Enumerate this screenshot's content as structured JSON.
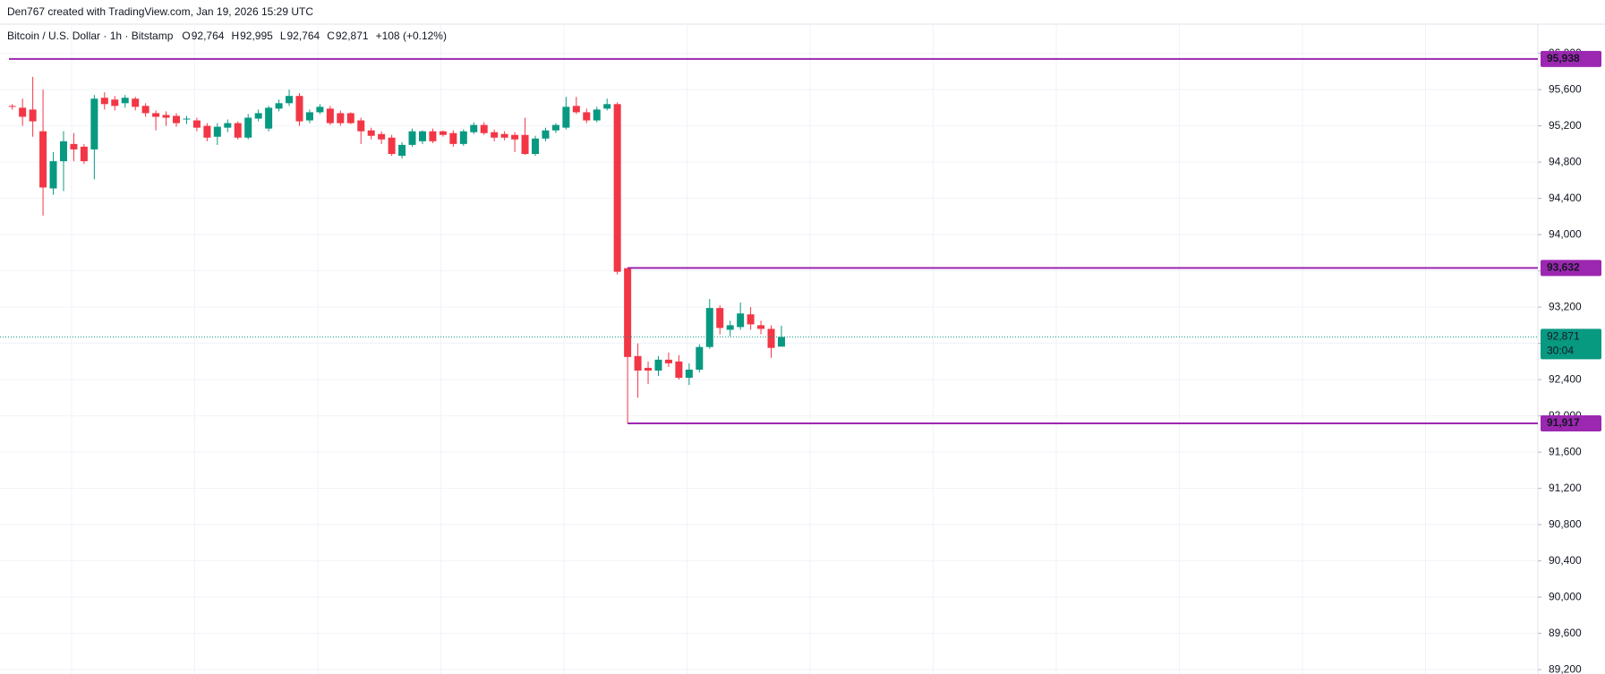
{
  "chart_data": {
    "type": "candlestick",
    "header": "Den767 created with TradingView.com, Jan 19, 2026 15:29 UTC",
    "symbol": "Bitcoin / U.S. Dollar · 1h · Bitstamp",
    "ohlc_labels": [
      {
        "key": "O",
        "text": "92,764"
      },
      {
        "key": "H",
        "text": "92,995"
      },
      {
        "key": "L",
        "text": "92,764"
      },
      {
        "key": "C",
        "text": "92,871"
      }
    ],
    "change": "+108 (+0.12%)",
    "up_color": "#089981",
    "down_color": "#f23645",
    "line_color": "#9c27b0",
    "open": [
      95420,
      95400,
      95380,
      95140,
      94510,
      94810,
      95000,
      94970,
      94940,
      95510,
      95490,
      95450,
      95500,
      95420,
      95340,
      95320,
      95310,
      95270,
      95260,
      95200,
      95080,
      95180,
      95230,
      95070,
      95280,
      95170,
      95390,
      95450,
      95530,
      95260,
      95350,
      95390,
      95340,
      95340,
      95260,
      95150,
      95110,
      95070,
      94870,
      94990,
      95030,
      95140,
      95140,
      95120,
      95000,
      95130,
      95210,
      95130,
      95110,
      95100,
      95100,
      94890,
      95060,
      95150,
      95180,
      95420,
      95350,
      95260,
      95390,
      95440,
      93630,
      92660,
      92530,
      92500,
      92620,
      92600,
      92420,
      92510,
      92760,
      93190,
      92950,
      92980,
      93120,
      93000,
      92960,
      92764
    ],
    "high": [
      95440,
      95500,
      95740,
      95600,
      94910,
      95140,
      95120,
      95000,
      95540,
      95570,
      95530,
      95540,
      95520,
      95450,
      95370,
      95360,
      95340,
      95310,
      95290,
      95230,
      95230,
      95270,
      95250,
      95330,
      95380,
      95420,
      95490,
      95600,
      95560,
      95380,
      95440,
      95420,
      95370,
      95350,
      95290,
      95180,
      95140,
      95100,
      95020,
      95170,
      95150,
      95170,
      95150,
      95150,
      95160,
      95240,
      95240,
      95160,
      95140,
      95130,
      95290,
      95090,
      95180,
      95230,
      95520,
      95520,
      95390,
      95410,
      95500,
      95460,
      93632,
      92800,
      92600,
      92660,
      92700,
      92670,
      92580,
      92790,
      93290,
      93220,
      93050,
      93250,
      93200,
      93050,
      93000,
      92995
    ],
    "low": [
      95380,
      95200,
      95080,
      94210,
      94440,
      94480,
      94810,
      94780,
      94610,
      95380,
      95370,
      95400,
      95370,
      95300,
      95150,
      95200,
      95190,
      95220,
      95140,
      95030,
      94990,
      95130,
      95050,
      95050,
      95250,
      95140,
      95360,
      95420,
      95200,
      95230,
      95330,
      95210,
      95200,
      95220,
      95000,
      95050,
      95000,
      94870,
      94840,
      94970,
      95000,
      95010,
      95080,
      94970,
      94980,
      95110,
      95100,
      95030,
      95040,
      94910,
      94880,
      94870,
      95030,
      95120,
      95160,
      95330,
      95230,
      95240,
      95370,
      93560,
      91917,
      92200,
      92350,
      92440,
      92540,
      92400,
      92340,
      92480,
      92740,
      92900,
      92880,
      92950,
      92950,
      92900,
      92640,
      92764
    ],
    "close": [
      95410,
      95300,
      95250,
      94520,
      94810,
      95030,
      94940,
      94810,
      95500,
      95440,
      95420,
      95510,
      95410,
      95340,
      95300,
      95290,
      95230,
      95280,
      95180,
      95070,
      95190,
      95230,
      95070,
      95290,
      95340,
      95400,
      95450,
      95530,
      95250,
      95350,
      95410,
      95230,
      95230,
      95230,
      95140,
      95090,
      95050,
      94890,
      94990,
      95140,
      95140,
      95030,
      95100,
      95000,
      95140,
      95210,
      95120,
      95070,
      95070,
      95050,
      94890,
      95060,
      95150,
      95210,
      95410,
      95350,
      95260,
      95380,
      95440,
      93590,
      92650,
      92500,
      92500,
      92620,
      92580,
      92420,
      92510,
      92760,
      93190,
      92970,
      93000,
      93130,
      93010,
      92960,
      92750,
      92871
    ],
    "hlines": [
      {
        "value": 95938,
        "label": "95,938"
      },
      {
        "value": 93632,
        "label": "93,632"
      },
      {
        "value": 91917,
        "label": "91,917"
      }
    ],
    "last": {
      "value": 92871,
      "label": "92,871",
      "countdown": "30:04"
    },
    "ylim": [
      89152,
      96322
    ],
    "yticks": [
      {
        "value": 89200,
        "label": "89,200"
      },
      {
        "value": 89600,
        "label": "89,600"
      },
      {
        "value": 90000,
        "label": "90,000"
      },
      {
        "value": 90400,
        "label": "90,400"
      },
      {
        "value": 90800,
        "label": "90,800"
      },
      {
        "value": 91200,
        "label": "91,200"
      },
      {
        "value": 91600,
        "label": "91,600"
      },
      {
        "value": 92000,
        "label": "92,000"
      },
      {
        "value": 92400,
        "label": "92,400"
      },
      {
        "value": 92800,
        "label": "92,800"
      },
      {
        "value": 93200,
        "label": "93,200"
      },
      {
        "value": 93600,
        "label": "93,600"
      },
      {
        "value": 94000,
        "label": "94,000"
      },
      {
        "value": 94400,
        "label": "94,400"
      },
      {
        "value": 94800,
        "label": "94,800"
      },
      {
        "value": 95200,
        "label": "95,200"
      },
      {
        "value": 95600,
        "label": "95,600"
      },
      {
        "value": 96000,
        "label": "96,000"
      }
    ],
    "grid": true
  }
}
